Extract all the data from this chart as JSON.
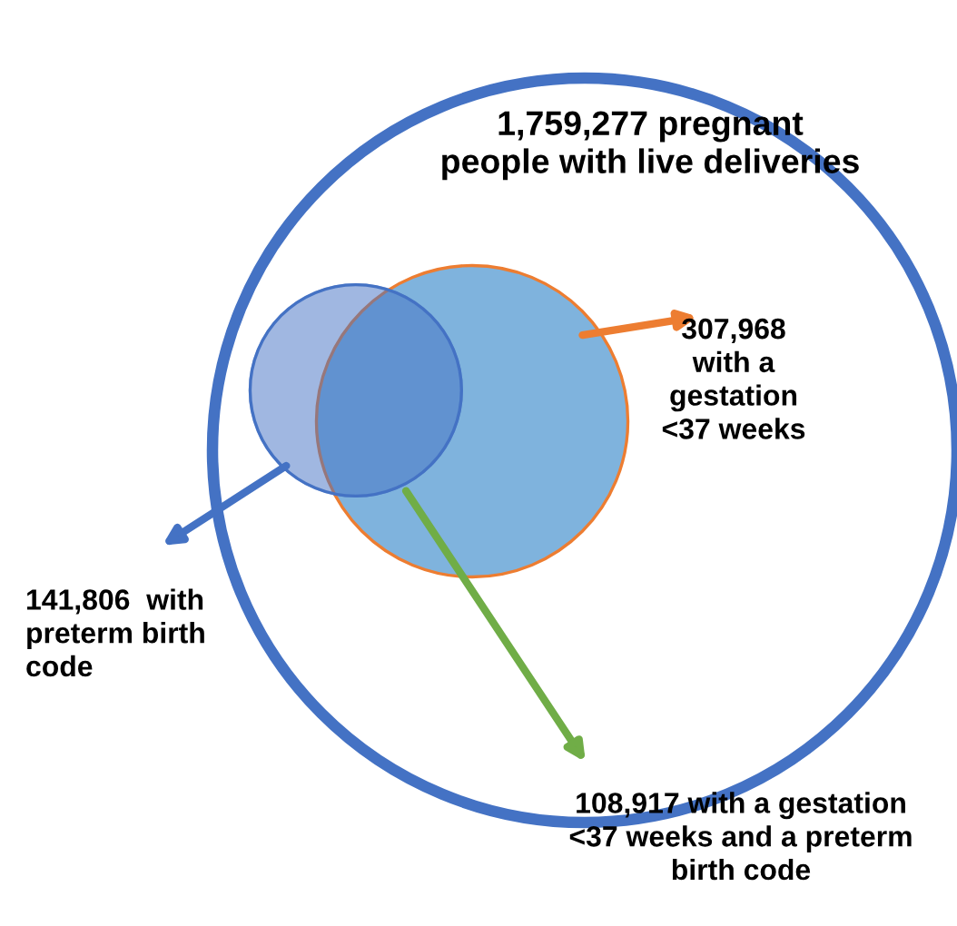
{
  "chart_data": {
    "type": "other",
    "categories": [
      null,
      null,
      null,
      null
    ],
    "values": [
      1759277,
      307968,
      141806,
      108917
    ],
    "value_labels": [
      "1,759,277 pregnant\npeople with live deliveries",
      "307,968\nwith a\ngestation\n<37 weeks",
      "141,806  with\npreterm birth\ncode",
      "108,917 with a gestation\n<37 weeks and a preterm\nbirth code"
    ],
    "colors": [
      "#4472c4",
      "#ed7d31",
      "#4472c4",
      "#70ad47"
    ]
  }
}
